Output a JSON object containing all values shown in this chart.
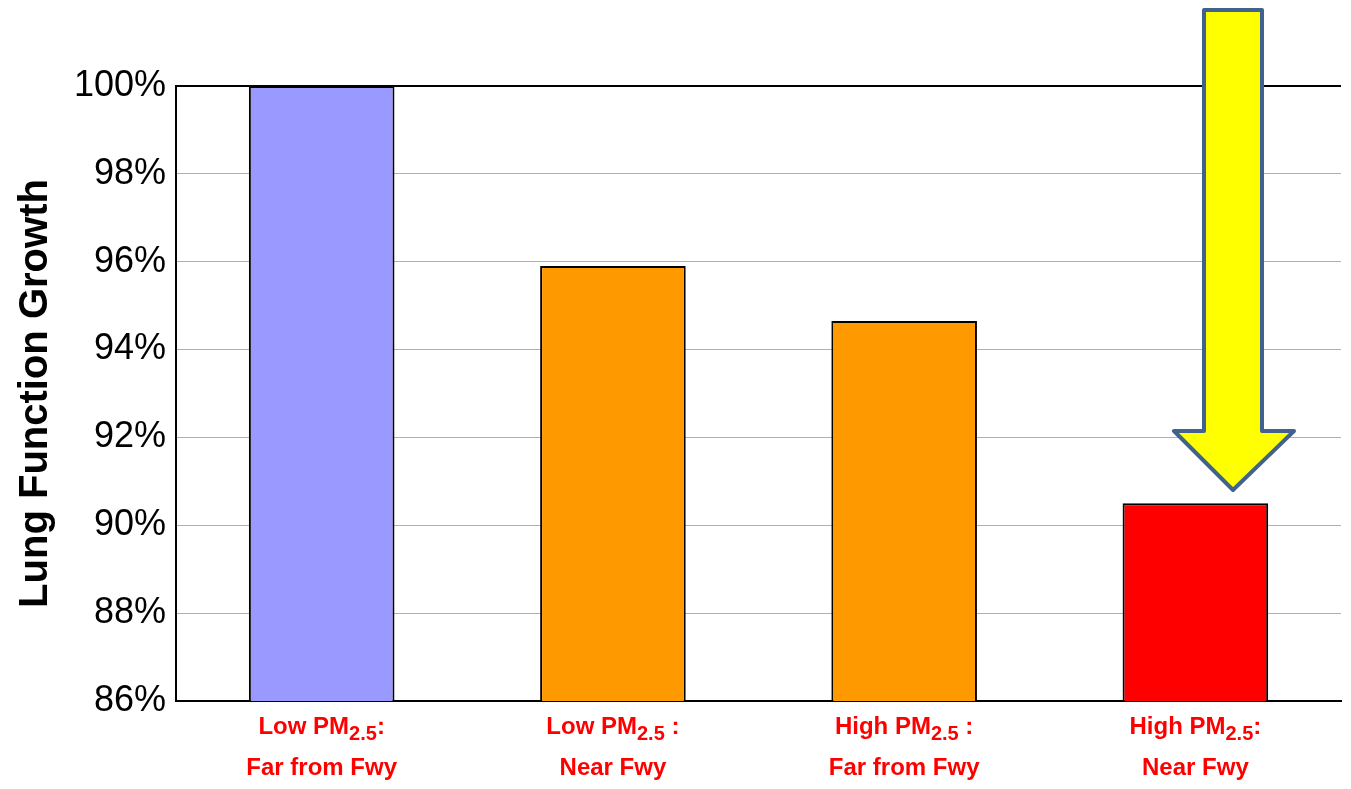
{
  "chart_data": {
    "type": "bar",
    "ylabel": "Lung Function Growth",
    "categories": [
      "Low PM$_{2.5}$:\nFar from Fwy",
      "Low PM$_{2.5}$ :\nNear Fwy",
      "High PM$_{2.5}$ :\nFar from Fwy",
      "High PM$_{2.5}$:\nNear Fwy"
    ],
    "values": [
      100,
      95.9,
      94.65,
      90.5
    ],
    "colors": [
      "#9999ff",
      "#ff9900",
      "#ff9900",
      "#ff0000"
    ],
    "ylim": [
      86,
      100
    ],
    "yticks": [
      {
        "value": 86,
        "label": "86%"
      },
      {
        "value": 88,
        "label": "88%"
      },
      {
        "value": 90,
        "label": "90%"
      },
      {
        "value": 92,
        "label": "92%"
      },
      {
        "value": 94,
        "label": "94%"
      },
      {
        "value": 96,
        "label": "96%"
      },
      {
        "value": 98,
        "label": "98%"
      },
      {
        "value": 100,
        "label": "100%"
      }
    ],
    "grid": "y",
    "legend": false
  }
}
